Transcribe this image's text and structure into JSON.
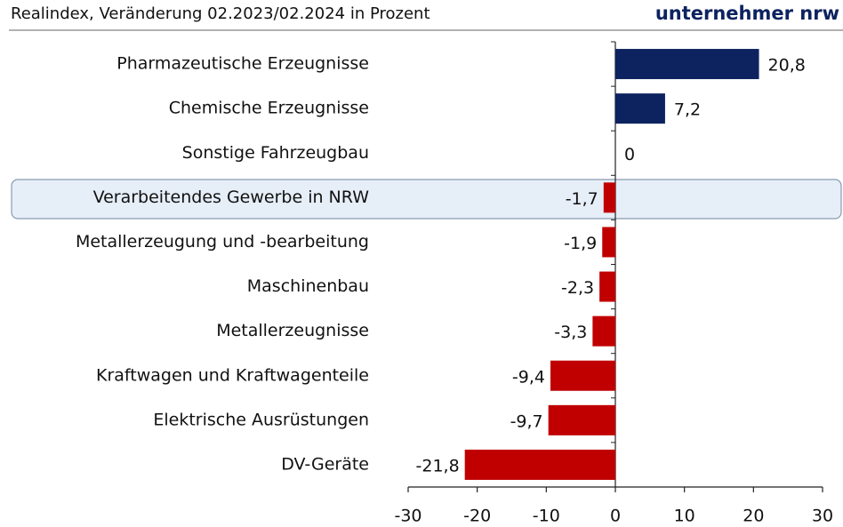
{
  "chart_data": {
    "type": "barh",
    "title": "Realindex, Veränderung 02.2023/02.2024 in Prozent",
    "brand": "unternehmer nrw",
    "categories": [
      "Pharmazeutische Erzeugnisse",
      "Chemische Erzeugnisse",
      "Sonstige Fahrzeugbau",
      "Verarbeitendes Gewerbe in NRW",
      "Metallerzeugung und -bearbeitung",
      "Maschinenbau",
      "Metallerzeugnisse",
      "Kraftwagen und Kraftwagenteile",
      "Elektrische Ausrüstungen",
      "DV-Geräte"
    ],
    "values": [
      20.8,
      7.2,
      0,
      -1.7,
      -1.9,
      -2.3,
      -3.3,
      -9.4,
      -9.7,
      -21.8
    ],
    "value_labels": [
      "20,8",
      "7,2",
      "0",
      "-1,7",
      "-1,9",
      "-2,3",
      "-3,3",
      "-9,4",
      "-9,7",
      "-21,8"
    ],
    "color": "#0d2360",
    "negative_color": "#c00000",
    "xlim": [
      -30,
      30
    ],
    "xticks": [
      -30,
      -20,
      -10,
      0,
      10,
      20,
      30
    ]
  }
}
